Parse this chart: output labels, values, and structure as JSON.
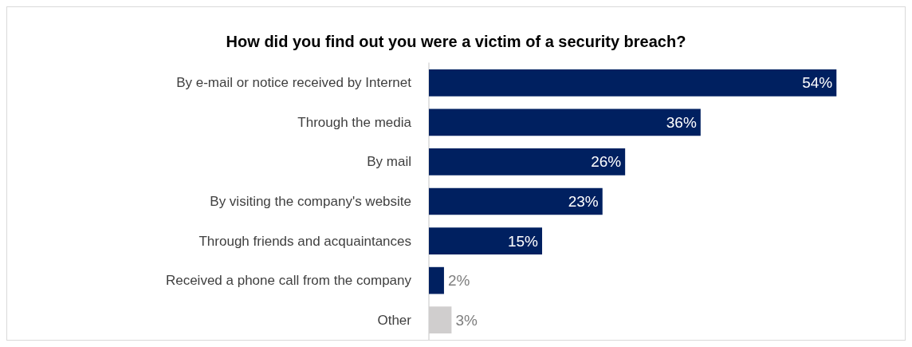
{
  "chart_data": {
    "type": "bar",
    "orientation": "horizontal",
    "title": "How did you find out you were a victim of a security breach?",
    "categories": [
      "By e-mail or notice received by Internet",
      "Through the media",
      "By mail",
      "By visiting the company's website",
      "Through friends and acquaintances",
      "Received a phone call from the company",
      "Other"
    ],
    "values": [
      54,
      36,
      26,
      23,
      15,
      2,
      3
    ],
    "colors": [
      "#002060",
      "#002060",
      "#002060",
      "#002060",
      "#002060",
      "#002060",
      "#d0cece"
    ],
    "value_labels": [
      "54%",
      "36%",
      "26%",
      "23%",
      "15%",
      "2%",
      "3%"
    ]
  }
}
